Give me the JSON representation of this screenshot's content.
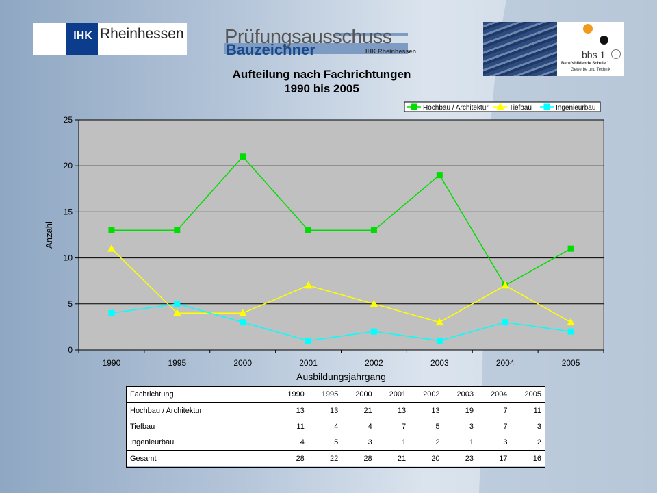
{
  "header": {
    "ihk_abbr": "IHK",
    "ihk_region": "Rheinhessen",
    "committee_title": "Prüfungsausschuss",
    "committee_sub": "Bauzeichner",
    "committee_sub_org": "IHK Rheinhessen",
    "school_short": "bbs 1",
    "school_line1": "Berufsbildende Schule 1",
    "school_line2": "Gewerbe und Technik"
  },
  "colors": {
    "hochbau": "#00dd00",
    "tiefbau": "#ffff00",
    "ingenieurbau": "#00ffff",
    "plot_bg": "#c0c0c0"
  },
  "chart_data": {
    "type": "line",
    "title": "Aufteilung nach Fachrichtungen",
    "subtitle": "1990 bis 2005",
    "xlabel": "Ausbildungsjahrgang",
    "ylabel": "Anzahl",
    "ylim": [
      0,
      25
    ],
    "yticks": [
      0,
      5,
      10,
      15,
      20,
      25
    ],
    "grid": true,
    "legend": "top-right",
    "categories": [
      "1990",
      "1995",
      "2000",
      "2001",
      "2002",
      "2003",
      "2004",
      "2005"
    ],
    "series": [
      {
        "name": "Hochbau / Architektur",
        "values": [
          13,
          13,
          21,
          13,
          13,
          19,
          7,
          11
        ],
        "marker": "square",
        "color": "#00dd00"
      },
      {
        "name": "Tiefbau",
        "values": [
          11,
          4,
          4,
          7,
          5,
          3,
          7,
          3
        ],
        "marker": "triangle",
        "color": "#ffff00"
      },
      {
        "name": "Ingenieurbau",
        "values": [
          4,
          5,
          3,
          1,
          2,
          1,
          3,
          2
        ],
        "marker": "square",
        "color": "#00ffff"
      }
    ]
  },
  "table": {
    "header_label": "Fachrichtung",
    "years": [
      "1990",
      "1995",
      "2000",
      "2001",
      "2002",
      "2003",
      "2004",
      "2005"
    ],
    "rows": [
      {
        "label": "Hochbau / Architektur",
        "values": [
          13,
          13,
          21,
          13,
          13,
          19,
          7,
          11
        ]
      },
      {
        "label": "Tiefbau",
        "values": [
          11,
          4,
          4,
          7,
          5,
          3,
          7,
          3
        ]
      },
      {
        "label": "Ingenieurbau",
        "values": [
          4,
          5,
          3,
          1,
          2,
          1,
          3,
          2
        ]
      }
    ],
    "total": {
      "label": "Gesamt",
      "values": [
        28,
        22,
        28,
        21,
        20,
        23,
        17,
        16
      ]
    }
  }
}
